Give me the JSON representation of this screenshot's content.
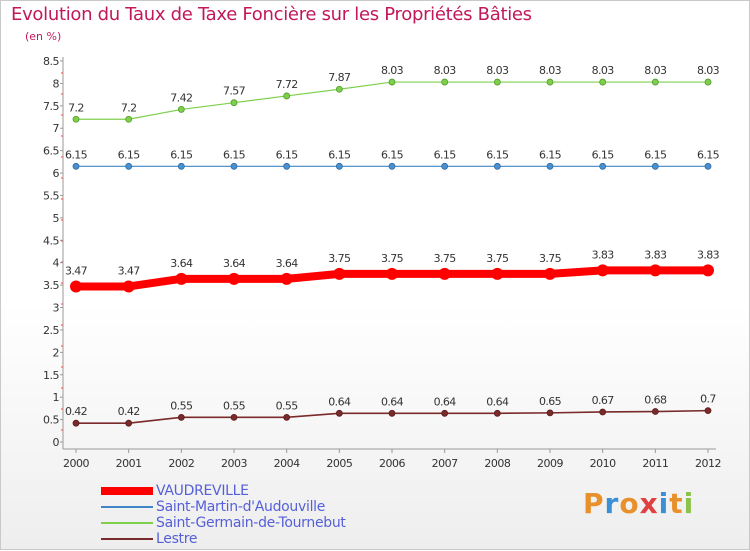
{
  "title": "Evolution du Taux de Taxe Foncière sur les Propriétés Bâties",
  "unit": "(en %)",
  "colors": {
    "title": "#c2185b",
    "axis": "#999999",
    "legend_text": "#5560d8"
  },
  "logo": {
    "letters": [
      "P",
      "r",
      "o",
      "x",
      "i",
      "t",
      "i"
    ],
    "colors": [
      "#e8912c",
      "#3a8fd6",
      "#e8912c",
      "#e04040",
      "#3a8fd6",
      "#e8912c",
      "#8bc34a"
    ]
  },
  "chart_data": {
    "type": "line",
    "title": "Evolution du Taux de Taxe Foncière sur les Propriétés Bâties",
    "ylabel": "(en %)",
    "x": [
      "2000",
      "2001",
      "2002",
      "2003",
      "2004",
      "2005",
      "2006",
      "2007",
      "2008",
      "2009",
      "2010",
      "2011",
      "2012"
    ],
    "ylim": [
      0,
      8.5
    ],
    "yticks": [
      "0",
      "0.5",
      "1",
      "1.5",
      "2",
      "2.5",
      "3",
      "3.5",
      "4",
      "4.5",
      "5",
      "5.5",
      "6",
      "6.5",
      "7",
      "7.5",
      "8",
      "8.5"
    ],
    "series": [
      {
        "name": "VAUDREVILLE",
        "color": "#ff0000",
        "values": [
          3.47,
          3.47,
          3.64,
          3.64,
          3.64,
          3.75,
          3.75,
          3.75,
          3.75,
          3.75,
          3.83,
          3.83,
          3.83
        ],
        "labels": [
          "3.47",
          "3.47",
          "3.64",
          "3.64",
          "3.64",
          "3.75",
          "3.75",
          "3.75",
          "3.75",
          "3.75",
          "3.83",
          "3.83",
          "3.83"
        ]
      },
      {
        "name": "Saint-Martin-d'Audouville",
        "color": "#3f86c6",
        "values": [
          6.15,
          6.15,
          6.15,
          6.15,
          6.15,
          6.15,
          6.15,
          6.15,
          6.15,
          6.15,
          6.15,
          6.15,
          6.15
        ],
        "labels": [
          "6.15",
          "6.15",
          "6.15",
          "6.15",
          "6.15",
          "6.15",
          "6.15",
          "6.15",
          "6.15",
          "6.15",
          "6.15",
          "6.15",
          "6.15"
        ]
      },
      {
        "name": "Saint-Germain-de-Tournebut",
        "color": "#7ed04b",
        "values": [
          7.2,
          7.2,
          7.42,
          7.57,
          7.72,
          7.87,
          8.03,
          8.03,
          8.03,
          8.03,
          8.03,
          8.03,
          8.03
        ],
        "labels": [
          "7.2",
          "7.2",
          "7.42",
          "7.57",
          "7.72",
          "7.87",
          "8.03",
          "8.03",
          "8.03",
          "8.03",
          "8.03",
          "8.03",
          "8.03"
        ]
      },
      {
        "name": "Lestre",
        "color": "#7a2a2a",
        "values": [
          0.42,
          0.42,
          0.55,
          0.55,
          0.55,
          0.64,
          0.64,
          0.64,
          0.64,
          0.65,
          0.67,
          0.68,
          0.7
        ],
        "labels": [
          "0.42",
          "0.42",
          "0.55",
          "0.55",
          "0.55",
          "0.64",
          "0.64",
          "0.64",
          "0.64",
          "0.65",
          "0.67",
          "0.68",
          "0.7"
        ]
      }
    ],
    "legend": [
      "VAUDREVILLE",
      "Saint-Martin-d'Audouville",
      "Saint-Germain-de-Tournebut",
      "Lestre"
    ]
  }
}
